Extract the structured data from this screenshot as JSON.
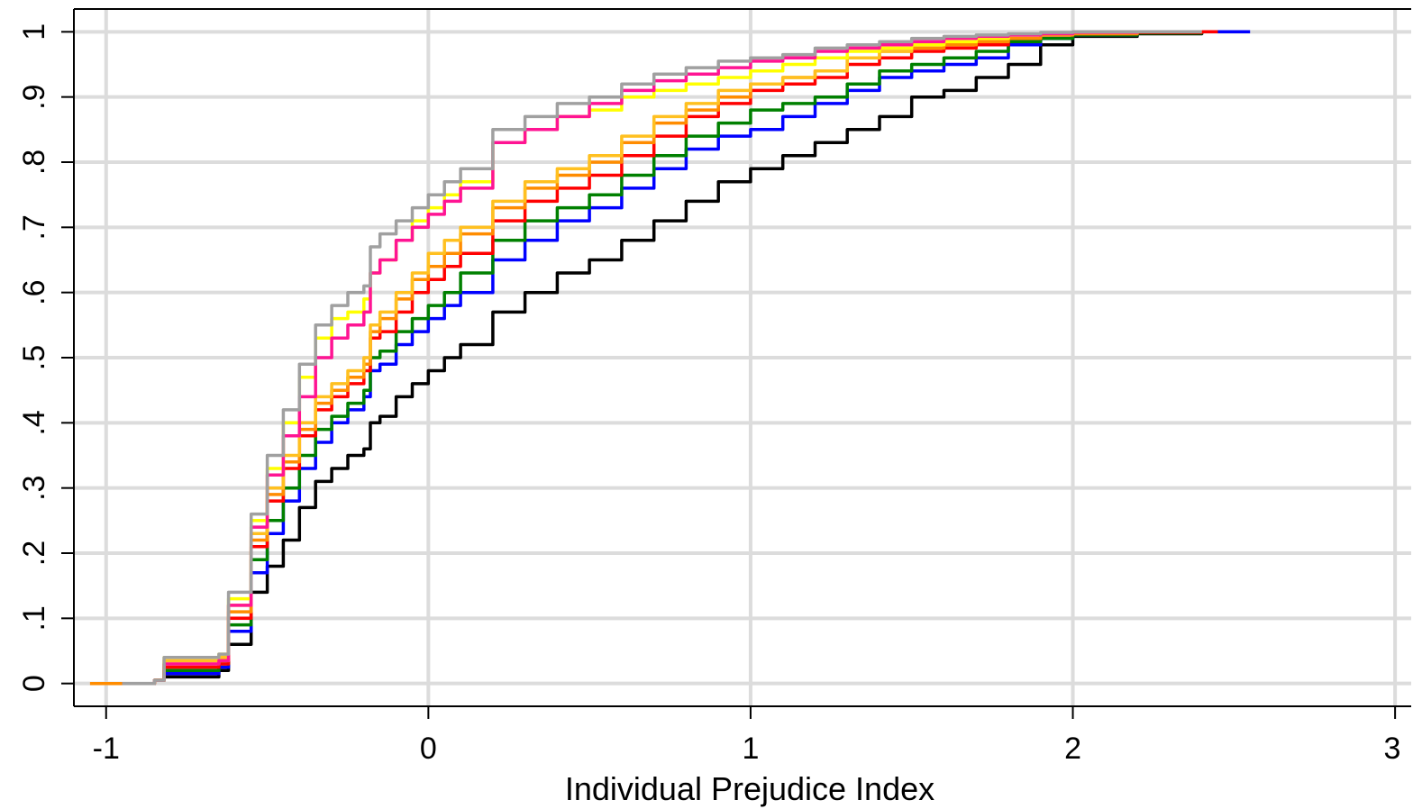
{
  "chart_data": {
    "type": "line",
    "title": "",
    "xlabel": "Individual Prejudice Index",
    "ylabel": "",
    "xlim": [
      -1.1,
      3.05
    ],
    "ylim": [
      -0.035,
      1.035
    ],
    "x_ticks": [
      -1,
      0,
      1,
      2,
      3
    ],
    "x_tick_labels": [
      "-1",
      "0",
      "1",
      "2",
      "3"
    ],
    "y_ticks": [
      0,
      0.1,
      0.2,
      0.3,
      0.4,
      0.5,
      0.6,
      0.7,
      0.8,
      0.9,
      1
    ],
    "y_tick_labels": [
      "0",
      ".1",
      ".2",
      ".3",
      ".4",
      ".5",
      ".6",
      ".7",
      ".8",
      ".9",
      "1"
    ],
    "grid": true,
    "legend": "none",
    "series": [
      {
        "color": "#000000",
        "x": [
          -0.95,
          -0.85,
          -0.82,
          -0.65,
          -0.62,
          -0.55,
          -0.5,
          -0.45,
          -0.4,
          -0.35,
          -0.3,
          -0.25,
          -0.2,
          -0.18,
          -0.15,
          -0.1,
          -0.05,
          0,
          0.05,
          0.1,
          0.2,
          0.3,
          0.4,
          0.5,
          0.6,
          0.7,
          0.8,
          0.9,
          1,
          1.1,
          1.2,
          1.3,
          1.4,
          1.5,
          1.6,
          1.7,
          1.8,
          1.9,
          2,
          2.2,
          2.4,
          2.45
        ],
        "y": [
          0,
          0.005,
          0.01,
          0.02,
          0.06,
          0.14,
          0.18,
          0.22,
          0.27,
          0.31,
          0.33,
          0.35,
          0.36,
          0.4,
          0.41,
          0.44,
          0.46,
          0.48,
          0.5,
          0.52,
          0.57,
          0.6,
          0.63,
          0.65,
          0.68,
          0.71,
          0.74,
          0.77,
          0.79,
          0.81,
          0.83,
          0.85,
          0.87,
          0.9,
          0.91,
          0.93,
          0.95,
          0.98,
          0.993,
          0.997,
          1,
          1
        ]
      },
      {
        "color": "#0000ff",
        "x": [
          -0.95,
          -0.85,
          -0.82,
          -0.65,
          -0.62,
          -0.55,
          -0.5,
          -0.45,
          -0.4,
          -0.35,
          -0.3,
          -0.25,
          -0.2,
          -0.18,
          -0.15,
          -0.1,
          -0.05,
          0,
          0.05,
          0.1,
          0.2,
          0.3,
          0.4,
          0.5,
          0.6,
          0.7,
          0.8,
          0.9,
          1,
          1.1,
          1.2,
          1.3,
          1.4,
          1.5,
          1.6,
          1.7,
          1.8,
          1.9,
          2,
          2.2,
          2.4,
          2.55
        ],
        "y": [
          0,
          0.005,
          0.015,
          0.025,
          0.08,
          0.17,
          0.23,
          0.28,
          0.33,
          0.37,
          0.4,
          0.42,
          0.44,
          0.48,
          0.49,
          0.52,
          0.54,
          0.56,
          0.58,
          0.6,
          0.65,
          0.68,
          0.71,
          0.73,
          0.76,
          0.79,
          0.82,
          0.84,
          0.85,
          0.87,
          0.89,
          0.91,
          0.93,
          0.94,
          0.95,
          0.96,
          0.98,
          0.99,
          0.995,
          0.998,
          1,
          1
        ]
      },
      {
        "color": "#008000",
        "x": [
          -0.95,
          -0.85,
          -0.82,
          -0.65,
          -0.62,
          -0.55,
          -0.5,
          -0.45,
          -0.4,
          -0.35,
          -0.3,
          -0.25,
          -0.2,
          -0.18,
          -0.15,
          -0.1,
          -0.05,
          0,
          0.05,
          0.1,
          0.2,
          0.3,
          0.4,
          0.5,
          0.6,
          0.7,
          0.8,
          0.9,
          1,
          1.1,
          1.2,
          1.3,
          1.4,
          1.5,
          1.6,
          1.7,
          1.8,
          1.9,
          2,
          2.2,
          2.4,
          2.45
        ],
        "y": [
          0,
          0.005,
          0.02,
          0.03,
          0.09,
          0.19,
          0.25,
          0.3,
          0.35,
          0.39,
          0.41,
          0.43,
          0.45,
          0.5,
          0.51,
          0.54,
          0.56,
          0.58,
          0.6,
          0.63,
          0.68,
          0.71,
          0.73,
          0.75,
          0.78,
          0.81,
          0.84,
          0.86,
          0.88,
          0.89,
          0.9,
          0.92,
          0.94,
          0.95,
          0.96,
          0.97,
          0.985,
          0.99,
          0.995,
          0.998,
          1,
          1
        ]
      },
      {
        "color": "#ff0000",
        "x": [
          -0.95,
          -0.85,
          -0.82,
          -0.65,
          -0.62,
          -0.55,
          -0.5,
          -0.45,
          -0.4,
          -0.35,
          -0.3,
          -0.25,
          -0.2,
          -0.18,
          -0.15,
          -0.1,
          -0.05,
          0,
          0.05,
          0.1,
          0.2,
          0.3,
          0.4,
          0.5,
          0.6,
          0.7,
          0.8,
          0.9,
          1,
          1.1,
          1.2,
          1.3,
          1.4,
          1.5,
          1.6,
          1.7,
          1.8,
          1.9,
          2,
          2.2,
          2.4,
          2.45
        ],
        "y": [
          0,
          0.005,
          0.025,
          0.03,
          0.1,
          0.21,
          0.28,
          0.33,
          0.38,
          0.42,
          0.44,
          0.46,
          0.48,
          0.53,
          0.54,
          0.57,
          0.6,
          0.62,
          0.64,
          0.66,
          0.71,
          0.74,
          0.76,
          0.78,
          0.81,
          0.84,
          0.87,
          0.89,
          0.91,
          0.92,
          0.93,
          0.95,
          0.96,
          0.97,
          0.975,
          0.98,
          0.99,
          0.995,
          0.997,
          0.999,
          1,
          1
        ]
      },
      {
        "color": "#ff8c00",
        "x": [
          -1.05,
          -0.95,
          -0.85,
          -0.82,
          -0.65,
          -0.62,
          -0.55,
          -0.5,
          -0.45,
          -0.4,
          -0.35,
          -0.3,
          -0.25,
          -0.2,
          -0.18,
          -0.15,
          -0.1,
          -0.05,
          0,
          0.05,
          0.1,
          0.2,
          0.3,
          0.4,
          0.5,
          0.6,
          0.7,
          0.8,
          0.9,
          1,
          1.1,
          1.2,
          1.3,
          1.4,
          1.5,
          1.6,
          1.7,
          1.8,
          1.9,
          2,
          2.2,
          2.4
        ],
        "y": [
          0,
          0,
          0.005,
          0.03,
          0.035,
          0.11,
          0.22,
          0.29,
          0.34,
          0.39,
          0.43,
          0.45,
          0.47,
          0.49,
          0.54,
          0.56,
          0.59,
          0.62,
          0.64,
          0.66,
          0.69,
          0.73,
          0.76,
          0.78,
          0.8,
          0.83,
          0.86,
          0.88,
          0.9,
          0.92,
          0.93,
          0.94,
          0.96,
          0.97,
          0.975,
          0.98,
          0.985,
          0.99,
          0.995,
          0.997,
          1,
          1
        ]
      },
      {
        "color": "#ffc020",
        "x": [
          -0.95,
          -0.85,
          -0.82,
          -0.65,
          -0.62,
          -0.55,
          -0.5,
          -0.45,
          -0.4,
          -0.35,
          -0.3,
          -0.25,
          -0.2,
          -0.18,
          -0.15,
          -0.1,
          -0.05,
          0,
          0.05,
          0.1,
          0.2,
          0.3,
          0.4,
          0.5,
          0.6,
          0.7,
          0.8,
          0.9,
          1,
          1.1,
          1.2,
          1.3,
          1.4,
          1.5,
          1.6,
          1.7,
          1.8,
          1.9,
          2,
          2.2,
          2.4
        ],
        "y": [
          0,
          0.005,
          0.035,
          0.04,
          0.12,
          0.23,
          0.3,
          0.35,
          0.4,
          0.44,
          0.46,
          0.48,
          0.5,
          0.55,
          0.57,
          0.6,
          0.63,
          0.66,
          0.68,
          0.7,
          0.74,
          0.77,
          0.79,
          0.81,
          0.84,
          0.87,
          0.89,
          0.91,
          0.92,
          0.93,
          0.94,
          0.96,
          0.97,
          0.98,
          0.985,
          0.99,
          0.995,
          0.997,
          0.999,
          1,
          1
        ]
      },
      {
        "color": "#ffff00",
        "x": [
          -0.95,
          -0.85,
          -0.82,
          -0.65,
          -0.62,
          -0.55,
          -0.5,
          -0.45,
          -0.4,
          -0.35,
          -0.3,
          -0.25,
          -0.2,
          -0.18,
          -0.15,
          -0.1,
          -0.05,
          0,
          0.05,
          0.1,
          0.2,
          0.3,
          0.4,
          0.5,
          0.6,
          0.7,
          0.8,
          0.9,
          1,
          1.1,
          1.2,
          1.3,
          1.4,
          1.5,
          1.6,
          1.7,
          1.8,
          1.9,
          2,
          2.2,
          2.4
        ],
        "y": [
          0,
          0.005,
          0.04,
          0.045,
          0.13,
          0.25,
          0.33,
          0.4,
          0.47,
          0.53,
          0.56,
          0.57,
          0.59,
          0.63,
          0.65,
          0.68,
          0.71,
          0.73,
          0.75,
          0.77,
          0.83,
          0.85,
          0.87,
          0.88,
          0.9,
          0.91,
          0.92,
          0.93,
          0.94,
          0.95,
          0.96,
          0.97,
          0.975,
          0.98,
          0.985,
          0.99,
          0.995,
          0.997,
          0.999,
          1,
          1
        ]
      },
      {
        "color": "#ff1493",
        "x": [
          -0.95,
          -0.85,
          -0.82,
          -0.65,
          -0.62,
          -0.55,
          -0.5,
          -0.45,
          -0.4,
          -0.35,
          -0.3,
          -0.25,
          -0.2,
          -0.18,
          -0.15,
          -0.1,
          -0.05,
          0,
          0.05,
          0.1,
          0.2,
          0.3,
          0.4,
          0.5,
          0.6,
          0.7,
          0.8,
          0.9,
          1,
          1.1,
          1.2,
          1.3,
          1.4,
          1.5,
          1.6,
          1.7,
          1.8,
          1.9,
          2,
          2.2,
          2.4
        ],
        "y": [
          0,
          0.005,
          0.03,
          0.035,
          0.12,
          0.24,
          0.32,
          0.38,
          0.44,
          0.5,
          0.53,
          0.55,
          0.57,
          0.63,
          0.65,
          0.68,
          0.7,
          0.72,
          0.74,
          0.76,
          0.83,
          0.85,
          0.87,
          0.89,
          0.91,
          0.925,
          0.935,
          0.945,
          0.955,
          0.96,
          0.97,
          0.975,
          0.98,
          0.985,
          0.99,
          0.993,
          0.995,
          0.997,
          0.999,
          1,
          1
        ]
      },
      {
        "color": "#a0a0a0",
        "x": [
          -0.95,
          -0.85,
          -0.82,
          -0.65,
          -0.62,
          -0.55,
          -0.5,
          -0.45,
          -0.4,
          -0.35,
          -0.3,
          -0.25,
          -0.2,
          -0.18,
          -0.15,
          -0.1,
          -0.05,
          0,
          0.05,
          0.1,
          0.2,
          0.3,
          0.4,
          0.5,
          0.6,
          0.7,
          0.8,
          0.9,
          1,
          1.1,
          1.2,
          1.3,
          1.4,
          1.5,
          1.6,
          1.7,
          1.8,
          1.9,
          2,
          2.2,
          2.4
        ],
        "y": [
          0,
          0.005,
          0.04,
          0.045,
          0.14,
          0.26,
          0.35,
          0.42,
          0.49,
          0.55,
          0.58,
          0.6,
          0.61,
          0.67,
          0.69,
          0.71,
          0.73,
          0.75,
          0.77,
          0.79,
          0.85,
          0.87,
          0.89,
          0.9,
          0.92,
          0.935,
          0.945,
          0.955,
          0.96,
          0.965,
          0.975,
          0.98,
          0.985,
          0.99,
          0.993,
          0.995,
          0.997,
          0.999,
          1,
          1,
          1
        ]
      }
    ]
  }
}
